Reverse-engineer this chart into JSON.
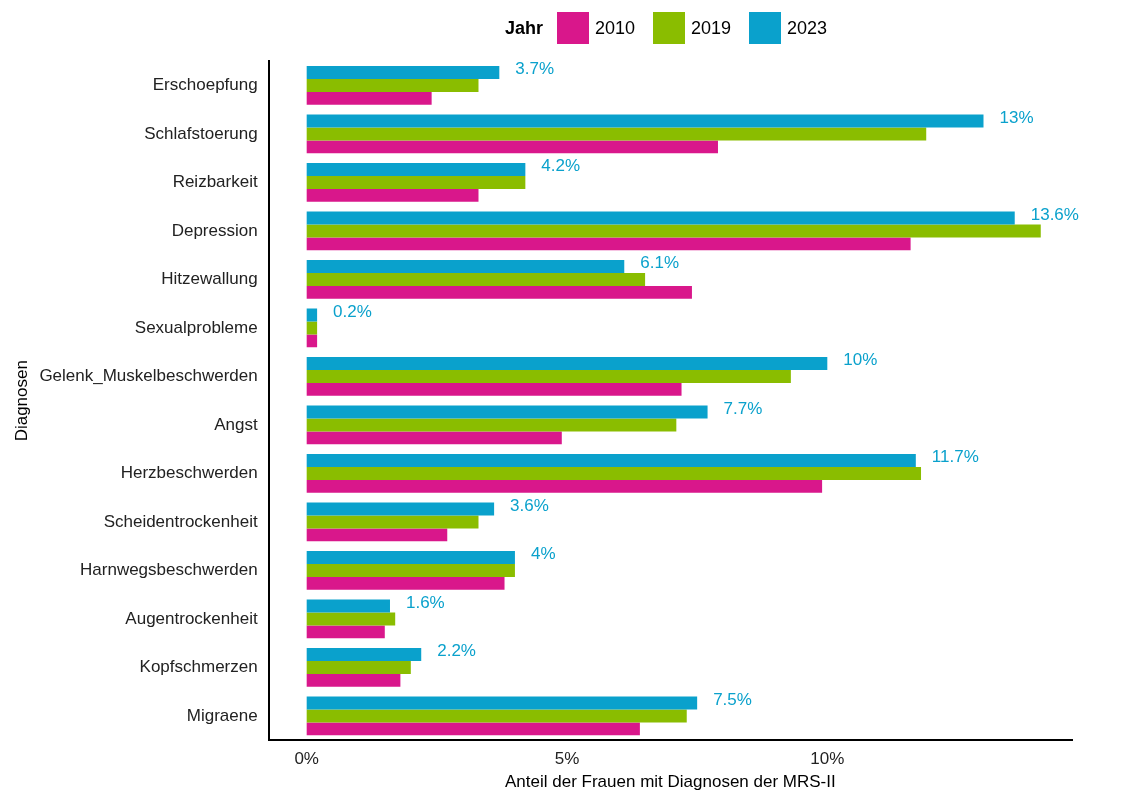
{
  "chart_data": {
    "type": "bar",
    "orientation": "horizontal",
    "xlabel": "Anteil der Frauen mit Diagnosen der MRS-II",
    "ylabel": "Diagnosen",
    "legend_title": "Jahr",
    "legend": "top",
    "grid": false,
    "categories": [
      "Erschoepfung",
      "Schlafstoerung",
      "Reizbarkeit",
      "Depression",
      "Hitzewallung",
      "Sexualprobleme",
      "Gelenk_Muskelbeschwerden",
      "Angst",
      "Herzbeschwerden",
      "Scheidentrockenheit",
      "Harnwegsbeschwerden",
      "Augentrockenheit",
      "Kopfschmerzen",
      "Migraene"
    ],
    "xlim": [
      -0.73,
      14.7
    ],
    "xticks": [
      {
        "value": 0,
        "label": "0%"
      },
      {
        "value": 5,
        "label": "5%"
      },
      {
        "value": 10,
        "label": "10%"
      }
    ],
    "series": [
      {
        "name": "2010",
        "color": "#d9178b",
        "values": [
          2.4,
          7.9,
          3.3,
          11.6,
          7.4,
          0.2,
          7.2,
          4.9,
          9.9,
          2.7,
          3.8,
          1.5,
          1.8,
          6.4
        ]
      },
      {
        "name": "2019",
        "color": "#8abd00",
        "values": [
          3.3,
          11.9,
          4.2,
          14.1,
          6.5,
          0.2,
          9.3,
          7.1,
          11.8,
          3.3,
          4.0,
          1.7,
          2.0,
          7.3
        ]
      },
      {
        "name": "2023",
        "color": "#0aa1cc",
        "values": [
          3.7,
          13.0,
          4.2,
          13.6,
          6.1,
          0.2,
          10.0,
          7.7,
          11.7,
          3.6,
          4.0,
          1.6,
          2.2,
          7.5
        ],
        "value_labels": [
          "3.7%",
          "13%",
          "4.2%",
          "13.6%",
          "6.1%",
          "0.2%",
          "10%",
          "7.7%",
          "11.7%",
          "3.6%",
          "4%",
          "1.6%",
          "2.2%",
          "7.5%"
        ]
      }
    ]
  }
}
